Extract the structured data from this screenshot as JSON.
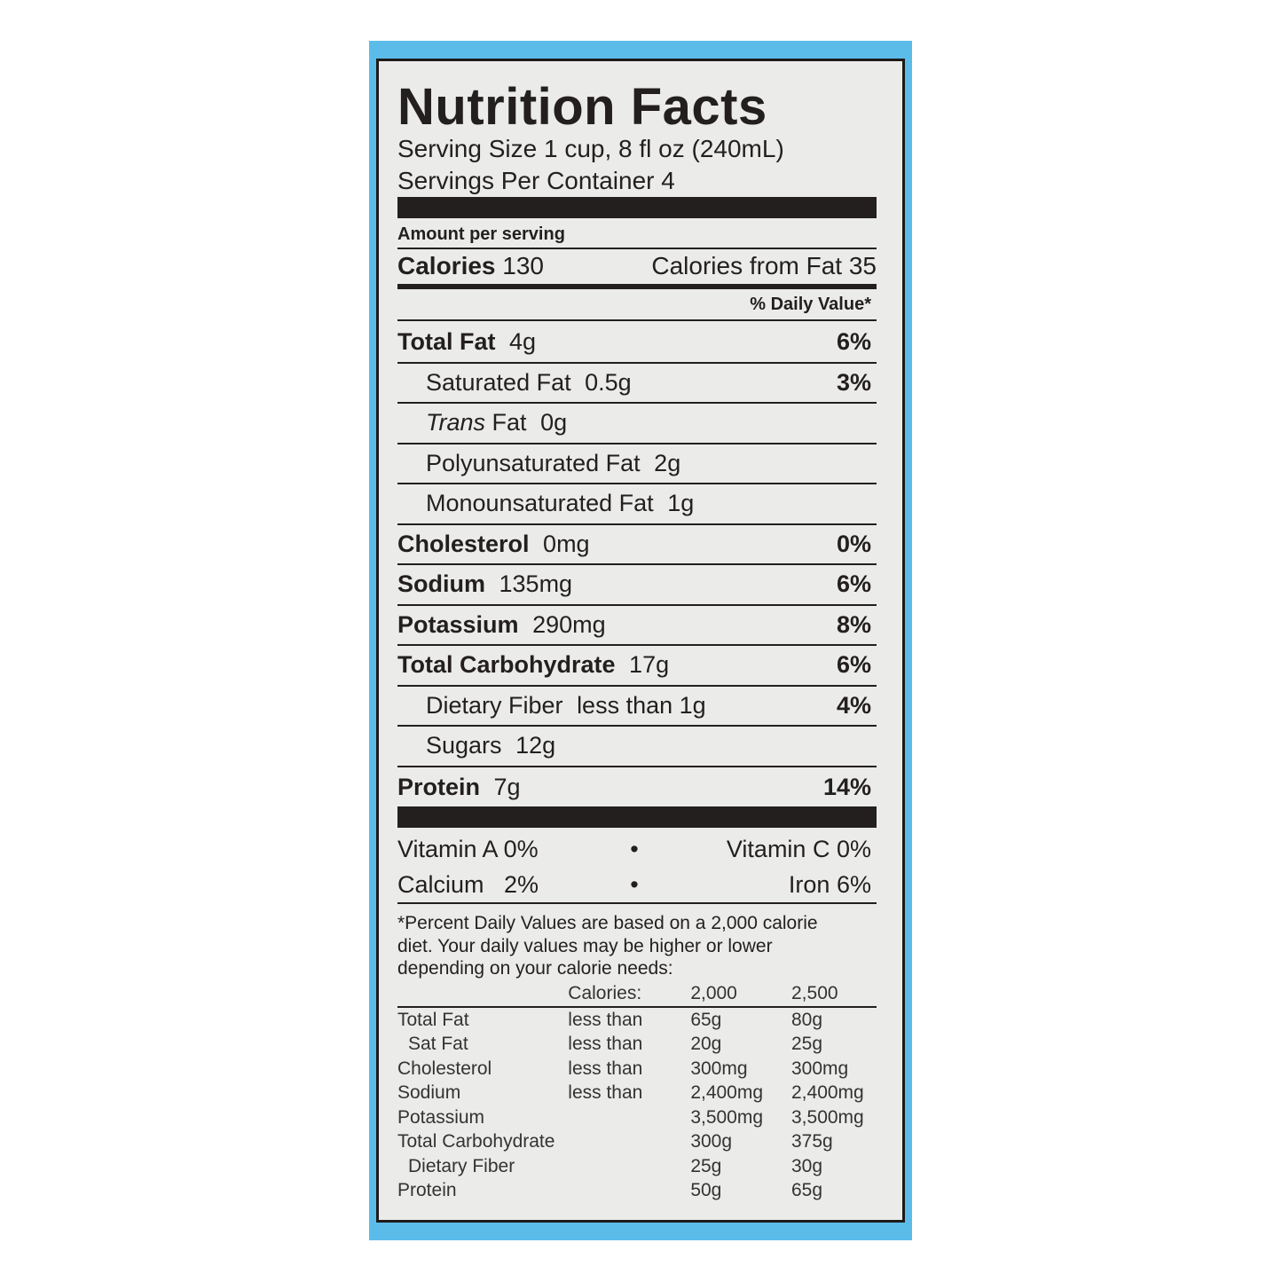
{
  "colors": {
    "background_frame": "#5bbcea",
    "label": "#ebebea",
    "ink": "#231f1f"
  },
  "title": "Nutrition Facts",
  "serving_size": "Serving Size 1 cup, 8 fl oz (240mL)",
  "servings_per_container": "Servings Per Container 4",
  "amount_per_serving": "Amount per serving",
  "calories": {
    "label": "Calories",
    "value": "130",
    "from_fat": "Calories from Fat 35"
  },
  "dv_header": "% Daily Value*",
  "nutrients": [
    {
      "name": "Total Fat",
      "amount": "4g",
      "dv": "6%"
    },
    {
      "name": "Saturated Fat",
      "amount": "0.5g",
      "dv": "3%"
    },
    {
      "name": "Trans",
      "name_suffix": "Fat",
      "amount": "0g",
      "dv": ""
    },
    {
      "name": "Polyunsaturated Fat",
      "amount": "2g",
      "dv": ""
    },
    {
      "name": "Monounsaturated Fat",
      "amount": "1g",
      "dv": ""
    },
    {
      "name": "Cholesterol",
      "amount": "0mg",
      "dv": "0%"
    },
    {
      "name": "Sodium",
      "amount": "135mg",
      "dv": "6%"
    },
    {
      "name": "Potassium",
      "amount": "290mg",
      "dv": "8%"
    },
    {
      "name": "Total Carbohydrate",
      "amount": "17g",
      "dv": "6%"
    },
    {
      "name": "Dietary Fiber",
      "amount": "less than 1g",
      "dv": "4%"
    },
    {
      "name": "Sugars",
      "amount": "12g",
      "dv": ""
    },
    {
      "name": "Protein",
      "amount": "7g",
      "dv": "14%"
    }
  ],
  "vitamins": [
    {
      "left": "Vitamin A  0%",
      "bullet": "•",
      "right": "Vitamin C  0%"
    },
    {
      "left": "Calcium   2%",
      "bullet": "•",
      "right": "Iron  6%"
    }
  ],
  "footnote": [
    "*Percent Daily Values are based on a 2,000 calorie",
    "diet. Your daily values may be higher or lower",
    "depending on your calorie needs:"
  ],
  "reference_table": {
    "header": [
      "",
      "Calories:",
      "2,000",
      "2,500"
    ],
    "rows": [
      [
        "Total Fat",
        "less than",
        "65g",
        "80g"
      ],
      [
        "Sat Fat",
        "less than",
        "20g",
        "25g"
      ],
      [
        "Cholesterol",
        "less than",
        "300mg",
        "300mg"
      ],
      [
        "Sodium",
        "less than",
        "2,400mg",
        "2,400mg"
      ],
      [
        "Potassium",
        "",
        "3,500mg",
        "3,500mg"
      ],
      [
        "Total Carbohydrate",
        "",
        "300g",
        "375g"
      ],
      [
        "Dietary Fiber",
        "",
        "25g",
        "30g"
      ],
      [
        "Protein",
        "",
        "50g",
        "65g"
      ]
    ]
  }
}
